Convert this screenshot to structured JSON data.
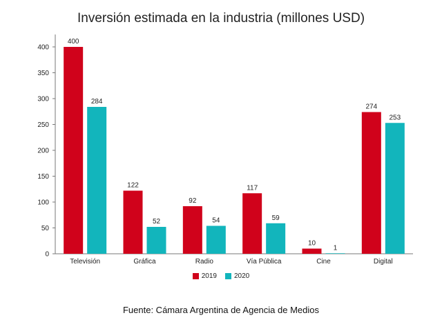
{
  "chart_data": {
    "type": "bar",
    "title": "Inversión estimada en la industria (millones USD)",
    "categories": [
      "Televisión",
      "Gráfica",
      "Radio",
      "Vía Pública",
      "Cine",
      "Digital"
    ],
    "series": [
      {
        "name": "2019",
        "values": [
          400,
          122,
          92,
          117,
          10,
          274
        ],
        "color": "#d0021b"
      },
      {
        "name": "2020",
        "values": [
          284,
          52,
          54,
          59,
          1,
          253
        ],
        "color": "#12b5bc"
      }
    ],
    "data_labels": [
      [
        "400",
        "122",
        "92",
        "117",
        "10",
        "274"
      ],
      [
        "284",
        "52",
        "54",
        "59",
        "1",
        "253"
      ]
    ],
    "y_ticks": [
      0,
      50,
      100,
      150,
      200,
      250,
      300,
      350,
      400
    ],
    "ylim": [
      0,
      400
    ],
    "xlabel": "",
    "ylabel": "",
    "grid": false,
    "legend_position": "bottom-center"
  },
  "source_note": "Fuente: Cámara Argentina de Agencia de Medios"
}
